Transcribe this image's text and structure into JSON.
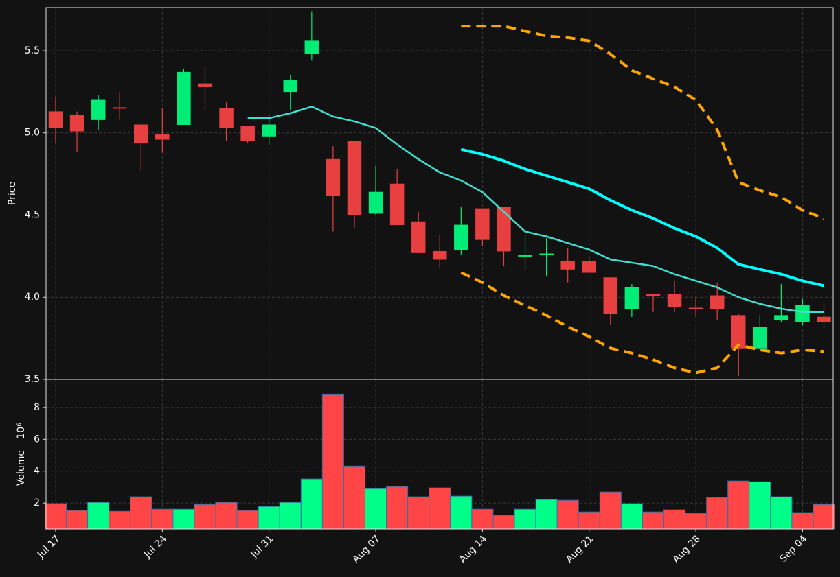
{
  "chart_data": [
    {
      "type": "candlestick",
      "y_label": "Price",
      "ylim": [
        3.5,
        5.763
      ],
      "yticks": [
        3.5,
        {
          "value": 4,
          "label": "4.0"
        },
        4.5,
        {
          "value": 5,
          "label": "5.0"
        },
        5.5
      ],
      "grid": true,
      "up_color": "#00ee77",
      "down_color": "#e84040",
      "open": [
        5.13,
        5.11,
        5.08,
        5.155,
        5.05,
        4.99,
        5.05,
        5.3,
        5.15,
        5.04,
        4.98,
        5.25,
        5.48,
        4.84,
        4.95,
        4.51,
        4.69,
        4.46,
        4.28,
        4.29,
        4.54,
        4.55,
        4.25,
        4.26,
        4.22,
        4.22,
        4.12,
        3.93,
        4.02,
        4.02,
        3.935,
        4.01,
        3.89,
        3.69,
        3.86,
        3.85,
        3.88
      ],
      "high": [
        5.22,
        5.13,
        5.23,
        5.25,
        5.05,
        5.15,
        5.39,
        5.4,
        5.19,
        5.04,
        5.11,
        5.35,
        5.74,
        4.92,
        4.95,
        4.8,
        4.78,
        4.52,
        4.38,
        4.55,
        4.54,
        4.55,
        4.38,
        4.36,
        4.3,
        4.25,
        4.12,
        4.08,
        4.02,
        4.1,
        4.0,
        4.09,
        3.9,
        3.89,
        4.08,
        3.99,
        3.97
      ],
      "low": [
        4.94,
        4.886,
        5.02,
        5.08,
        4.77,
        4.88,
        5.05,
        5.14,
        4.95,
        4.94,
        4.93,
        5.14,
        5.44,
        4.4,
        4.42,
        4.5,
        4.44,
        4.27,
        4.18,
        4.26,
        4.31,
        4.19,
        4.17,
        4.13,
        4.09,
        4.15,
        3.83,
        3.88,
        3.91,
        3.91,
        3.88,
        3.86,
        3.52,
        3.69,
        3.85,
        3.83,
        3.81
      ],
      "close": [
        5.03,
        5.01,
        5.2,
        5.15,
        4.94,
        4.96,
        5.37,
        5.28,
        5.03,
        4.95,
        5.05,
        5.32,
        5.56,
        4.62,
        4.5,
        4.64,
        4.44,
        4.27,
        4.23,
        4.44,
        4.35,
        4.28,
        4.255,
        4.265,
        4.17,
        4.15,
        3.9,
        4.06,
        4.01,
        3.94,
        3.93,
        3.93,
        3.69,
        3.82,
        3.89,
        3.95,
        3.85
      ],
      "series": [
        {
          "color": "#40e0d0",
          "width": 2.5,
          "style": "solid",
          "values": [
            null,
            null,
            null,
            null,
            null,
            null,
            null,
            null,
            null,
            5.09,
            5.09,
            5.12,
            5.16,
            5.1,
            5.07,
            5.03,
            4.93,
            4.84,
            4.76,
            4.71,
            4.64,
            4.52,
            4.4,
            4.37,
            4.33,
            4.29,
            4.23,
            4.21,
            4.19,
            4.14,
            4.1,
            4.06,
            4.0,
            3.96,
            3.93,
            3.91,
            3.91
          ]
        },
        {
          "color": "#00ffff",
          "width": 4,
          "style": "solid",
          "values": [
            null,
            null,
            null,
            null,
            null,
            null,
            null,
            null,
            null,
            null,
            null,
            null,
            null,
            null,
            null,
            null,
            null,
            null,
            null,
            4.9,
            4.87,
            4.83,
            4.78,
            4.74,
            4.7,
            4.66,
            4.59,
            4.53,
            4.48,
            4.42,
            4.37,
            4.3,
            4.2,
            4.17,
            4.14,
            4.1,
            4.07
          ]
        },
        {
          "color": "#ffa500",
          "width": 4,
          "style": "dashed",
          "values": [
            null,
            null,
            null,
            null,
            null,
            null,
            null,
            null,
            null,
            null,
            null,
            null,
            null,
            null,
            null,
            null,
            null,
            null,
            null,
            5.65,
            5.65,
            5.65,
            5.62,
            5.59,
            5.58,
            5.56,
            5.48,
            5.38,
            5.33,
            5.28,
            5.2,
            5.02,
            4.7,
            4.65,
            4.61,
            4.53,
            4.48
          ]
        },
        {
          "color": "#ffa500",
          "width": 4,
          "style": "dashed",
          "values": [
            null,
            null,
            null,
            null,
            null,
            null,
            null,
            null,
            null,
            null,
            null,
            null,
            null,
            null,
            null,
            null,
            null,
            null,
            null,
            4.15,
            4.09,
            4.01,
            3.95,
            3.89,
            3.82,
            3.76,
            3.69,
            3.66,
            3.62,
            3.57,
            3.54,
            3.57,
            3.71,
            3.68,
            3.66,
            3.68,
            3.67
          ]
        }
      ]
    },
    {
      "type": "bar",
      "y_label": "Volume",
      "y_offset_label": "10⁶",
      "ylim": [
        0.37,
        9.76
      ],
      "yticks": [
        2,
        4,
        6,
        8
      ],
      "grid": true,
      "edge_color": "#3a6ea5",
      "categories": [
        "Jul 17",
        null,
        null,
        null,
        null,
        "Jul 24",
        null,
        null,
        null,
        null,
        "Jul 31",
        null,
        null,
        null,
        null,
        "Aug 07",
        null,
        null,
        null,
        null,
        "Aug 14",
        null,
        null,
        null,
        null,
        "Aug 21",
        null,
        null,
        null,
        null,
        "Aug 28",
        null,
        null,
        null,
        null,
        "Sep 04",
        null
      ],
      "values": [
        1.96,
        1.53,
        2.04,
        1.48,
        2.39,
        1.61,
        1.61,
        1.91,
        2.04,
        1.53,
        1.78,
        2.04,
        3.51,
        8.84,
        4.32,
        2.9,
        3.03,
        2.39,
        2.95,
        2.43,
        1.61,
        1.23,
        1.61,
        2.22,
        2.17,
        1.44,
        2.69,
        1.96,
        1.44,
        1.57,
        1.35,
        2.34,
        3.38,
        3.33,
        2.39,
        1.4,
        1.91
      ],
      "colors": [
        "#ff4545",
        "#ff4545",
        "#00ff88",
        "#ff4545",
        "#ff4545",
        "#ff4545",
        "#00ff88",
        "#ff4545",
        "#ff4545",
        "#ff4545",
        "#00ff88",
        "#00ff88",
        "#00ff88",
        "#ff4545",
        "#ff4545",
        "#00ff88",
        "#ff4545",
        "#ff4545",
        "#ff4545",
        "#00ff88",
        "#ff4545",
        "#ff4545",
        "#00ff88",
        "#00ff88",
        "#ff4545",
        "#ff4545",
        "#ff4545",
        "#00ff88",
        "#ff4545",
        "#ff4545",
        "#ff4545",
        "#ff4545",
        "#ff4545",
        "#00ff88",
        "#00ff88",
        "#ff4545",
        "#ff4545"
      ]
    }
  ]
}
